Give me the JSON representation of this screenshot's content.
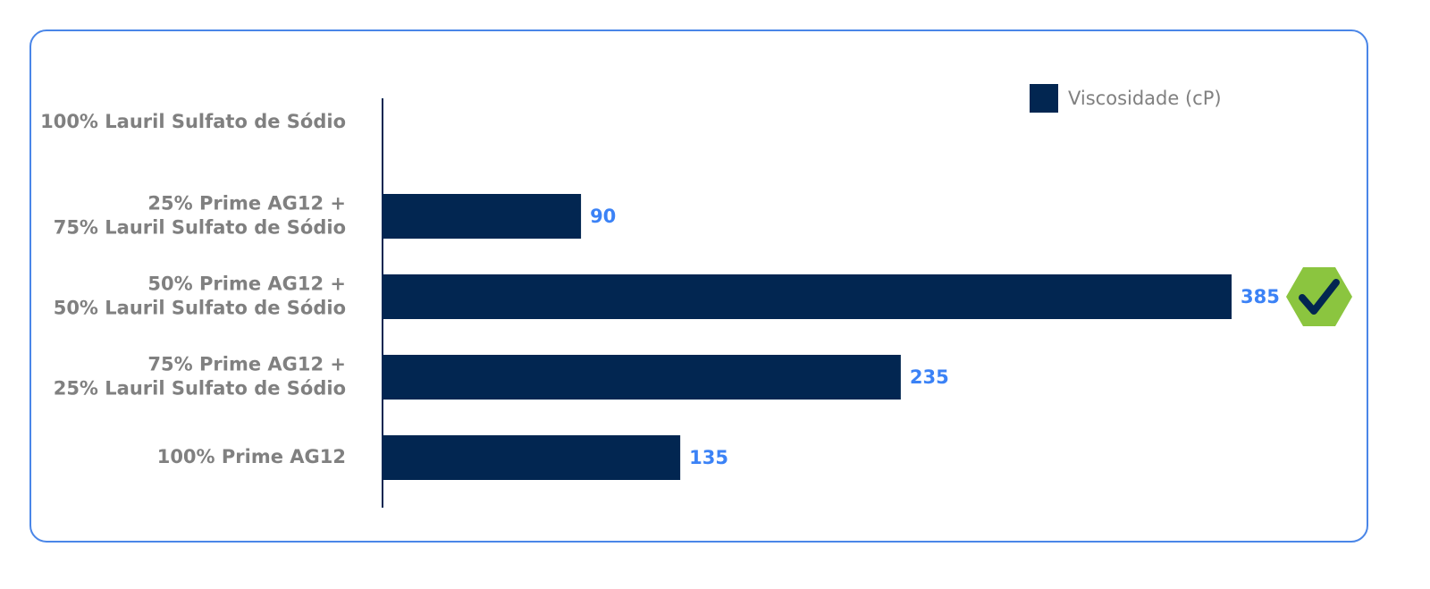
{
  "chart_data": {
    "type": "bar",
    "orientation": "horizontal",
    "categories": [
      [
        "100% Lauril Sulfato de Sódio"
      ],
      [
        "25%  Prime AG12 +",
        "75% Lauril Sulfato de Sódio"
      ],
      [
        "50% Prime AG12 +",
        "50% Lauril Sulfato de Sódio"
      ],
      [
        "75% Prime AG12 +",
        "25% Lauril Sulfato de Sódio"
      ],
      [
        "100% Prime AG12"
      ]
    ],
    "series": [
      {
        "name": "Viscosidade (cP)",
        "color": "#022651",
        "values": [
          null,
          90,
          385,
          235,
          135
        ]
      }
    ],
    "label_color": "#3b82f6"
  }
}
